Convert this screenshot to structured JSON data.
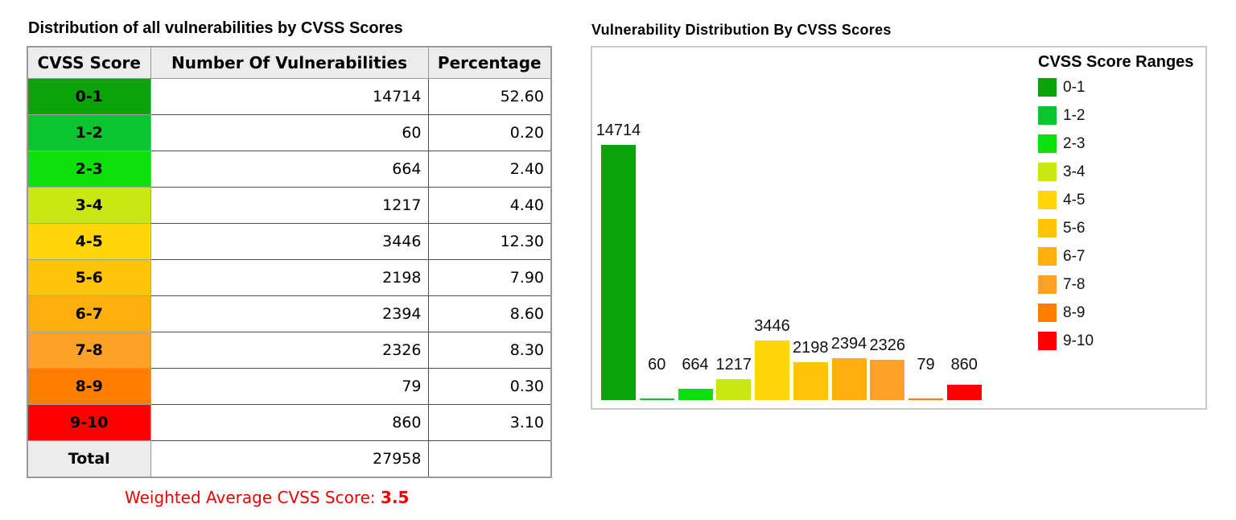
{
  "left_panel": {
    "title": "Distribution of all vulnerabilities by CVSS Scores",
    "table": {
      "headers": [
        "CVSS Score",
        "Number Of Vulnerabilities",
        "Percentage"
      ],
      "rows": [
        {
          "range": "0-1",
          "count": "14714",
          "percentage": "52.60",
          "color": "#0aa40a"
        },
        {
          "range": "1-2",
          "count": "60",
          "percentage": "0.20",
          "color": "#0cc42e"
        },
        {
          "range": "2-3",
          "count": "664",
          "percentage": "2.40",
          "color": "#0be00b"
        },
        {
          "range": "3-4",
          "count": "1217",
          "percentage": "4.40",
          "color": "#c9e713"
        },
        {
          "range": "4-5",
          "count": "3446",
          "percentage": "12.30",
          "color": "#ffd60a"
        },
        {
          "range": "5-6",
          "count": "2198",
          "percentage": "7.90",
          "color": "#ffc30a"
        },
        {
          "range": "6-7",
          "count": "2394",
          "percentage": "8.60",
          "color": "#ffae10"
        },
        {
          "range": "7-8",
          "count": "2326",
          "percentage": "8.30",
          "color": "#ffa028"
        },
        {
          "range": "8-9",
          "count": "79",
          "percentage": "0.30",
          "color": "#ff7e00"
        },
        {
          "range": "9-10",
          "count": "860",
          "percentage": "3.10",
          "color": "#ff0000"
        }
      ],
      "total": {
        "label": "Total",
        "count": "27958",
        "percentage": ""
      }
    },
    "footer": {
      "label": "Weighted Average CVSS Score: ",
      "value": "3.5",
      "color": "#ee0000"
    }
  },
  "chart": {
    "title": "Vulnerability Distribution By CVSS Scores",
    "legend_title": "CVSS Score Ranges"
  },
  "chart_data": {
    "type": "bar",
    "title": "Vulnerability Distribution By CVSS Scores",
    "categories": [
      "0-1",
      "1-2",
      "2-3",
      "3-4",
      "4-5",
      "5-6",
      "6-7",
      "7-8",
      "8-9",
      "9-10"
    ],
    "values": [
      14714,
      60,
      664,
      1217,
      3446,
      2198,
      2394,
      2326,
      79,
      860
    ],
    "colors": [
      "#0aa40a",
      "#0cc42e",
      "#0be00b",
      "#c9e713",
      "#ffd60a",
      "#ffc30a",
      "#ffae10",
      "#ffa028",
      "#ff7e00",
      "#ff0000"
    ],
    "bar_value_labels": true,
    "legend_title": "CVSS Score Ranges",
    "legend_position": "right",
    "xlabel": "",
    "ylabel": "",
    "ylim": [
      0,
      14714
    ],
    "axes_shown": false,
    "grid": false
  }
}
